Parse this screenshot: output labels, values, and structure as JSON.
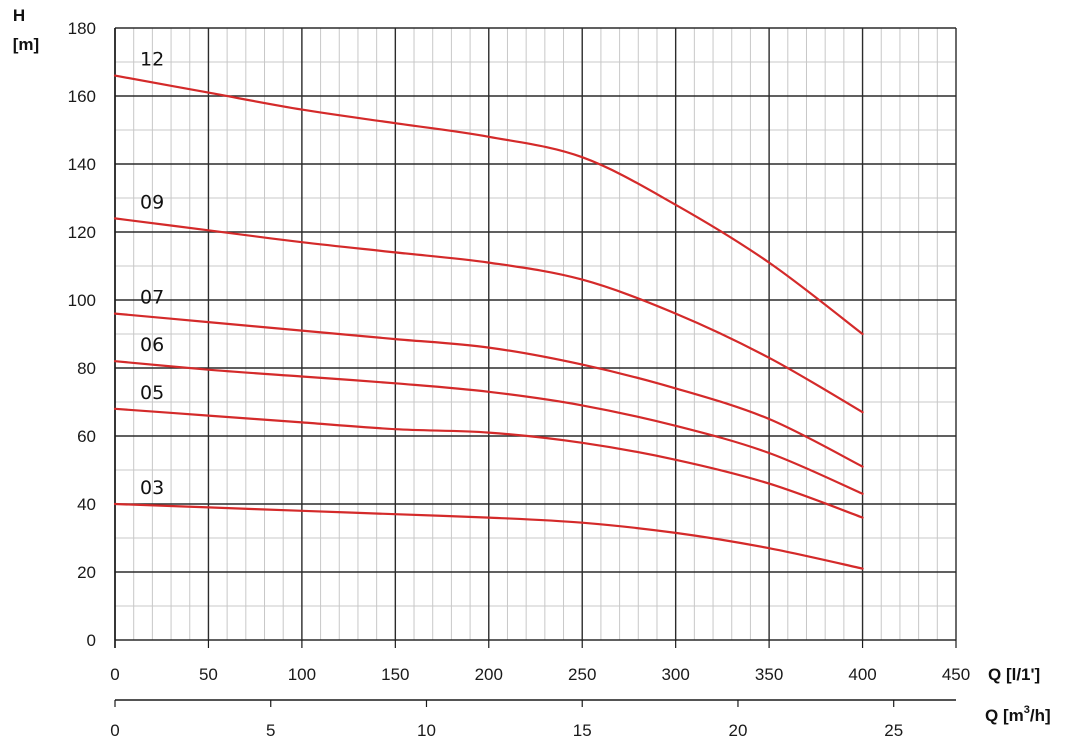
{
  "chart_data": {
    "type": "line",
    "y_title": "H",
    "y_unit": "[m]",
    "x_title": "Q [l/1']",
    "x2_title_prefix": "Q [m",
    "x2_title_sup": "3",
    "x2_title_suffix": "/h]",
    "ylim": [
      0,
      180
    ],
    "xlim": [
      0,
      450
    ],
    "x2lim": [
      0,
      27
    ],
    "y_ticks": [
      "0",
      "20",
      "40",
      "60",
      "80",
      "100",
      "120",
      "140",
      "160",
      "180"
    ],
    "x_ticks": [
      "0",
      "50",
      "100",
      "150",
      "200",
      "250",
      "300",
      "350",
      "400",
      "450"
    ],
    "x2_ticks": [
      "0",
      "5",
      "10",
      "15",
      "20",
      "25"
    ],
    "grid": true,
    "line_color": "#d42a2a",
    "series": [
      {
        "name": "12",
        "x": [
          0,
          50,
          100,
          150,
          200,
          250,
          300,
          350,
          400
        ],
        "y": [
          166,
          161,
          156,
          152,
          148,
          142,
          128,
          111,
          90
        ]
      },
      {
        "name": "09",
        "x": [
          0,
          50,
          100,
          150,
          200,
          250,
          300,
          350,
          400
        ],
        "y": [
          124,
          120.5,
          117,
          114,
          111,
          106,
          96,
          83,
          67
        ]
      },
      {
        "name": "07",
        "x": [
          0,
          50,
          100,
          150,
          200,
          250,
          300,
          350,
          400
        ],
        "y": [
          96,
          93.5,
          91,
          88.5,
          86,
          81,
          74,
          65,
          51
        ]
      },
      {
        "name": "06",
        "x": [
          0,
          50,
          100,
          150,
          200,
          250,
          300,
          350,
          400
        ],
        "y": [
          82,
          79.5,
          77.5,
          75.5,
          73,
          69,
          63,
          55,
          43
        ]
      },
      {
        "name": "05",
        "x": [
          0,
          50,
          100,
          150,
          200,
          250,
          300,
          350,
          400
        ],
        "y": [
          68,
          66,
          64,
          62,
          61,
          58,
          53,
          46,
          36
        ]
      },
      {
        "name": "03",
        "x": [
          0,
          50,
          100,
          150,
          200,
          250,
          300,
          350,
          400
        ],
        "y": [
          40,
          39,
          38,
          37,
          36,
          34.5,
          31.5,
          27,
          21
        ]
      }
    ]
  }
}
